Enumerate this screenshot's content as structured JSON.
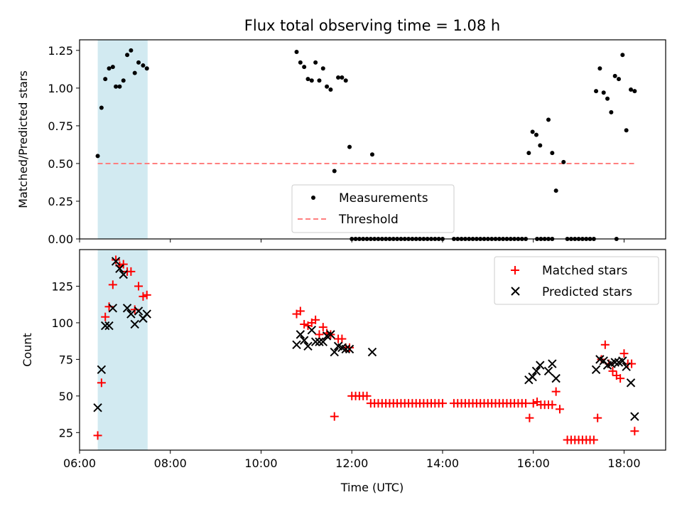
{
  "chart_data": [
    {
      "type": "scatter",
      "title": "Flux total observing time = 1.08 h",
      "xlabel": "",
      "ylabel": "Matched/Predicted stars",
      "xlim": [
        "06:00",
        "18:55"
      ],
      "ylim": [
        0,
        1.32
      ],
      "yticks": [
        "0.00",
        "0.25",
        "0.50",
        "0.75",
        "1.00",
        "1.25"
      ],
      "x_axis_type": "time",
      "highlight_span": [
        "06:24",
        "07:30"
      ],
      "highlight_color": "#add8e6",
      "legend_position": "lower-center",
      "series": [
        {
          "name": "Measurements",
          "marker": "dot",
          "color": "#000000",
          "x": [
            "06:24",
            "06:29",
            "06:34",
            "06:39",
            "06:44",
            "06:48",
            "06:53",
            "06:58",
            "07:03",
            "07:08",
            "07:13",
            "07:18",
            "07:24",
            "07:29",
            "10:47",
            "10:52",
            "10:57",
            "11:02",
            "11:07",
            "11:12",
            "11:17",
            "11:22",
            "11:27",
            "11:32",
            "11:37",
            "11:42",
            "11:47",
            "11:52",
            "11:57",
            "12:27",
            "15:54",
            "15:59",
            "16:04",
            "16:09",
            "16:20",
            "16:25",
            "16:30",
            "16:40",
            "17:23",
            "17:28",
            "17:33",
            "17:38",
            "17:43",
            "17:48",
            "17:53",
            "17:58",
            "18:03",
            "18:09",
            "18:14",
            "12:00",
            "12:05",
            "12:10",
            "12:15",
            "12:20",
            "12:25",
            "12:30",
            "12:35",
            "12:40",
            "12:45",
            "12:50",
            "12:55",
            "13:00",
            "13:05",
            "13:10",
            "13:15",
            "13:20",
            "13:25",
            "13:30",
            "13:35",
            "13:40",
            "13:45",
            "13:50",
            "13:55",
            "14:00",
            "14:15",
            "14:20",
            "14:25",
            "14:30",
            "14:35",
            "14:40",
            "14:45",
            "14:50",
            "14:55",
            "15:00",
            "15:05",
            "15:10",
            "15:15",
            "15:20",
            "15:25",
            "15:30",
            "15:35",
            "15:40",
            "15:45",
            "15:50",
            "16:05",
            "16:10",
            "16:15",
            "16:20",
            "16:25",
            "16:45",
            "16:50",
            "16:55",
            "17:00",
            "17:05",
            "17:10",
            "17:15",
            "17:20",
            "17:50"
          ],
          "y": [
            0.55,
            0.87,
            1.06,
            1.13,
            1.14,
            1.01,
            1.01,
            1.05,
            1.22,
            1.25,
            1.1,
            1.17,
            1.15,
            1.13,
            1.24,
            1.17,
            1.14,
            1.06,
            1.05,
            1.17,
            1.05,
            1.13,
            1.01,
            0.99,
            0.45,
            1.07,
            1.07,
            1.05,
            0.61,
            0.56,
            0.57,
            0.71,
            0.69,
            0.62,
            0.79,
            0.57,
            0.32,
            0.51,
            0.98,
            1.13,
            0.97,
            0.93,
            0.84,
            1.08,
            1.06,
            1.22,
            0.72,
            0.99,
            0.98,
            0,
            0,
            0,
            0,
            0,
            0,
            0,
            0,
            0,
            0,
            0,
            0,
            0,
            0,
            0,
            0,
            0,
            0,
            0,
            0,
            0,
            0,
            0,
            0,
            0,
            0,
            0,
            0,
            0,
            0,
            0,
            0,
            0,
            0,
            0,
            0,
            0,
            0,
            0,
            0,
            0,
            0,
            0,
            0,
            0,
            0,
            0,
            0,
            0,
            0,
            0,
            0,
            0,
            0,
            0,
            0,
            0,
            0,
            0
          ]
        },
        {
          "name": "Threshold",
          "type": "line",
          "style": "dashed",
          "color": "#ff7f7f",
          "x": [
            "06:24",
            "18:14"
          ],
          "y": [
            0.5,
            0.5
          ]
        }
      ]
    },
    {
      "type": "scatter",
      "title": "",
      "xlabel": "Time (UTC)",
      "ylabel": "Count",
      "xlim": [
        "06:00",
        "18:55"
      ],
      "ylim": [
        13,
        150
      ],
      "yticks": [
        "25",
        "50",
        "75",
        "100",
        "125"
      ],
      "xticks": [
        "06:00",
        "08:00",
        "10:00",
        "12:00",
        "14:00",
        "16:00",
        "18:00"
      ],
      "x_axis_type": "time",
      "highlight_span": [
        "06:24",
        "07:30"
      ],
      "highlight_color": "#add8e6",
      "legend_position": "top-right",
      "series": [
        {
          "name": "Matched stars",
          "marker": "plus",
          "color": "#ff0000",
          "x": [
            "06:24",
            "06:29",
            "06:34",
            "06:39",
            "06:44",
            "06:48",
            "06:53",
            "06:58",
            "07:03",
            "07:08",
            "07:13",
            "07:18",
            "07:24",
            "07:29",
            "10:47",
            "10:52",
            "10:57",
            "11:02",
            "11:07",
            "11:12",
            "11:17",
            "11:22",
            "11:27",
            "11:32",
            "11:37",
            "11:42",
            "11:47",
            "11:52",
            "11:57",
            "12:00",
            "12:05",
            "12:10",
            "12:15",
            "12:20",
            "12:25",
            "12:30",
            "12:35",
            "12:40",
            "12:45",
            "12:50",
            "12:55",
            "13:00",
            "13:05",
            "13:10",
            "13:15",
            "13:20",
            "13:25",
            "13:30",
            "13:35",
            "13:40",
            "13:45",
            "13:50",
            "13:55",
            "14:00",
            "14:15",
            "14:20",
            "14:25",
            "14:30",
            "14:35",
            "14:40",
            "14:45",
            "14:50",
            "14:55",
            "15:00",
            "15:05",
            "15:10",
            "15:15",
            "15:20",
            "15:25",
            "15:30",
            "15:35",
            "15:40",
            "15:45",
            "15:50",
            "15:55",
            "16:00",
            "16:05",
            "16:10",
            "16:15",
            "16:20",
            "16:25",
            "16:30",
            "16:35",
            "16:45",
            "16:50",
            "16:55",
            "17:00",
            "17:05",
            "17:10",
            "17:15",
            "17:20",
            "17:25",
            "17:30",
            "17:35",
            "17:40",
            "17:45",
            "17:50",
            "17:55",
            "18:00",
            "18:05",
            "18:10",
            "18:14"
          ],
          "y": [
            23,
            59,
            104,
            111,
            126,
            143,
            139,
            140,
            135,
            135,
            109,
            125,
            118,
            119,
            106,
            108,
            99,
            98,
            100,
            102,
            92,
            97,
            93,
            92,
            36,
            89,
            89,
            83,
            83,
            50,
            50,
            50,
            50,
            50,
            45,
            45,
            45,
            45,
            45,
            45,
            45,
            45,
            45,
            45,
            45,
            45,
            45,
            45,
            45,
            45,
            45,
            45,
            45,
            45,
            45,
            45,
            45,
            45,
            45,
            45,
            45,
            45,
            45,
            45,
            45,
            45,
            45,
            45,
            45,
            45,
            45,
            45,
            45,
            45,
            35,
            45,
            46,
            44,
            44,
            44,
            44,
            53,
            41,
            20,
            20,
            20,
            20,
            20,
            20,
            20,
            20,
            35,
            75,
            85,
            72,
            67,
            64,
            62,
            79,
            72,
            72,
            26
          ]
        },
        {
          "name": "Predicted stars",
          "marker": "x",
          "color": "#000000",
          "x": [
            "06:24",
            "06:29",
            "06:34",
            "06:39",
            "06:44",
            "06:48",
            "06:53",
            "06:58",
            "07:03",
            "07:08",
            "07:13",
            "07:18",
            "07:24",
            "07:29",
            "10:47",
            "10:52",
            "10:57",
            "11:02",
            "11:07",
            "11:12",
            "11:17",
            "11:22",
            "11:27",
            "11:32",
            "11:37",
            "11:42",
            "11:47",
            "11:52",
            "11:57",
            "12:27",
            "15:54",
            "15:59",
            "16:04",
            "16:09",
            "16:20",
            "16:25",
            "16:30",
            "17:23",
            "17:28",
            "17:33",
            "17:38",
            "17:43",
            "17:48",
            "17:53",
            "17:58",
            "18:03",
            "18:09",
            "18:14"
          ],
          "y": [
            42,
            68,
            98,
            98,
            110,
            142,
            137,
            133,
            110,
            106,
            99,
            108,
            103,
            106,
            85,
            92,
            88,
            84,
            95,
            87,
            87,
            87,
            91,
            92,
            80,
            84,
            83,
            82,
            82,
            80,
            61,
            63,
            67,
            71,
            67,
            72,
            62,
            68,
            75,
            74,
            71,
            72,
            73,
            73,
            74,
            70,
            59,
            36
          ]
        }
      ]
    }
  ]
}
